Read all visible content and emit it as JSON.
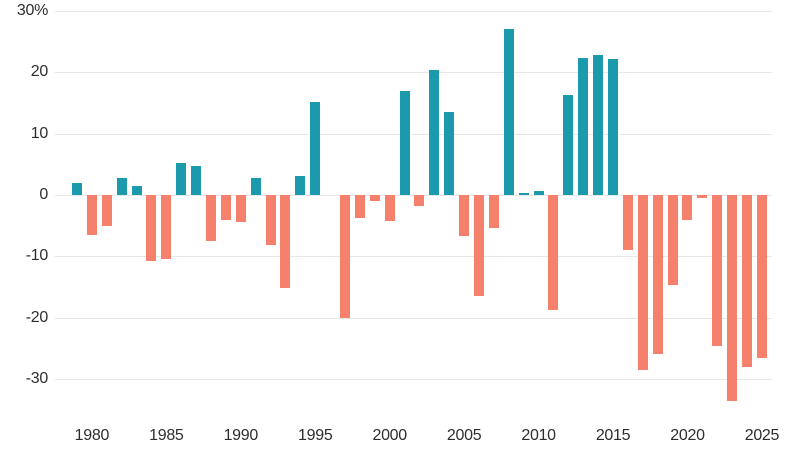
{
  "chart_data": {
    "type": "bar",
    "title": "",
    "xlabel": "",
    "ylabel": "",
    "unit": "%",
    "legend": "none",
    "grid": true,
    "ylim": [
      -35.5,
      30
    ],
    "x": [
      1979,
      1980,
      1981,
      1982,
      1983,
      1984,
      1985,
      1986,
      1987,
      1988,
      1989,
      1990,
      1991,
      1992,
      1993,
      1994,
      1995,
      1996,
      1997,
      1998,
      1999,
      2000,
      2001,
      2002,
      2003,
      2004,
      2005,
      2006,
      2007,
      2008,
      2009,
      2010,
      2011,
      2012,
      2013,
      2014,
      2015,
      2016,
      2017,
      2018,
      2019,
      2020,
      2021,
      2022,
      2023,
      2024,
      2025
    ],
    "values": [
      2.0,
      -6.6,
      -5.1,
      2.7,
      1.4,
      -10.7,
      -10.5,
      5.2,
      4.8,
      -7.5,
      -4.1,
      -4.4,
      2.7,
      -8.1,
      -15.2,
      3.1,
      15.1,
      0.0,
      -20.1,
      -3.7,
      -1.0,
      -4.2,
      16.9,
      -1.8,
      20.4,
      13.6,
      -6.7,
      -16.5,
      -5.4,
      27.1,
      0.4,
      0.6,
      -18.8,
      16.3,
      22.4,
      22.9,
      22.1,
      -8.9,
      -28.5,
      -25.9,
      -14.7,
      -4.0,
      -0.5,
      -24.6,
      -33.6,
      -28.1,
      -26.6
    ],
    "y_ticks": [
      {
        "v": 30,
        "label": "30%"
      },
      {
        "v": 20,
        "label": "20"
      },
      {
        "v": 10,
        "label": "10"
      },
      {
        "v": 0,
        "label": "0"
      },
      {
        "v": -10,
        "label": "-10"
      },
      {
        "v": -20,
        "label": "-20"
      },
      {
        "v": -30,
        "label": "-30"
      }
    ],
    "x_ticks": [
      "1980",
      "1985",
      "1990",
      "1995",
      "2000",
      "2005",
      "2010",
      "2015",
      "2020",
      "2025"
    ],
    "positive_color": "#1b9aae",
    "negative_color": "#f5806c",
    "grid_color": "#e7e7e7",
    "label_color": "#2e2e2e",
    "background_color": "#ffffff"
  }
}
